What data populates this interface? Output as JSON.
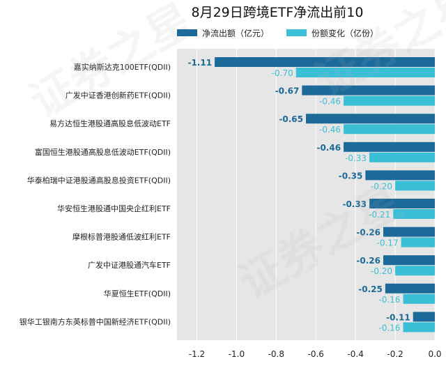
{
  "chart_data": {
    "type": "bar",
    "orientation": "horizontal",
    "title": "8月29日跨境ETF净流出前10",
    "categories": [
      "嘉实纳斯达克100ETF(QDII)",
      "广发中证香港创新药ETF(QDII)",
      "易方达恒生港股通高股息低波动ETF",
      "富国恒生港股通高股息低波动ETF(QDII)",
      "华泰柏瑞中证港股通高股息投资ETF(QDII)",
      "华安恒生港股通中国央企红利ETF",
      "摩根标普港股通低波红利ETF",
      "广发中证港股通汽车ETF",
      "华夏恒生ETF(QDII)",
      "银华工银南方东英标普中国新经济ETF(QDII)"
    ],
    "series": [
      {
        "name": "净流出额（亿元）",
        "color": "#1b6a9a",
        "values": [
          -1.11,
          -0.67,
          -0.65,
          -0.46,
          -0.35,
          -0.33,
          -0.26,
          -0.26,
          -0.25,
          -0.11
        ],
        "labels": [
          "-1.11",
          "-0.67",
          "-0.65",
          "-0.46",
          "-0.35",
          "-0.33",
          "-0.26",
          "-0.26",
          "-0.25",
          "-0.11"
        ]
      },
      {
        "name": "份额变化（亿份）",
        "color": "#3bbfd6",
        "values": [
          -0.7,
          -0.46,
          -0.46,
          -0.33,
          -0.2,
          -0.21,
          -0.17,
          -0.2,
          -0.16,
          -0.16
        ],
        "labels": [
          "-0.70",
          "-0.46",
          "-0.46",
          "-0.33",
          "-0.20",
          "-0.21",
          "-0.17",
          "-0.20",
          "-0.16",
          "-0.16"
        ]
      }
    ],
    "xlim": [
      -1.3,
      0.0
    ],
    "xticks": [
      -1.2,
      -1.0,
      -0.8,
      -0.6,
      -0.4,
      -0.2,
      0.0
    ],
    "xtick_labels": [
      "-1.2",
      "-1.0",
      "-0.8",
      "-0.6",
      "-0.4",
      "-0.2",
      "0.0"
    ],
    "grid": true,
    "legend_position": "top-center",
    "watermark": "证券之星"
  }
}
